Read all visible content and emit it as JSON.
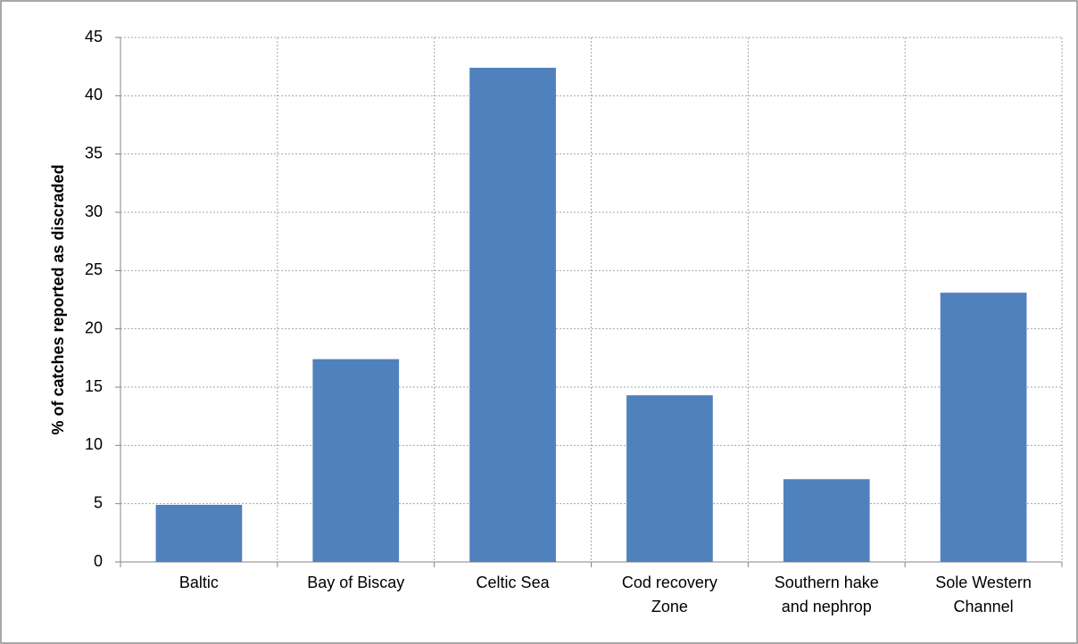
{
  "chart_data": {
    "type": "bar",
    "y_label": "% of catches reported as discraded",
    "categories": [
      "Baltic",
      "Bay of Biscay",
      "Celtic Sea",
      "Cod recovery Zone",
      "Southern hake and nephrop",
      "Sole Western Channel"
    ],
    "values": [
      4.9,
      17.4,
      42.4,
      14.3,
      7.1,
      23.1
    ],
    "color": "#4f81bd",
    "ylim": [
      0,
      45
    ],
    "yticks": [
      0,
      5,
      10,
      15,
      20,
      25,
      30,
      35,
      40,
      45
    ],
    "grid": true
  }
}
